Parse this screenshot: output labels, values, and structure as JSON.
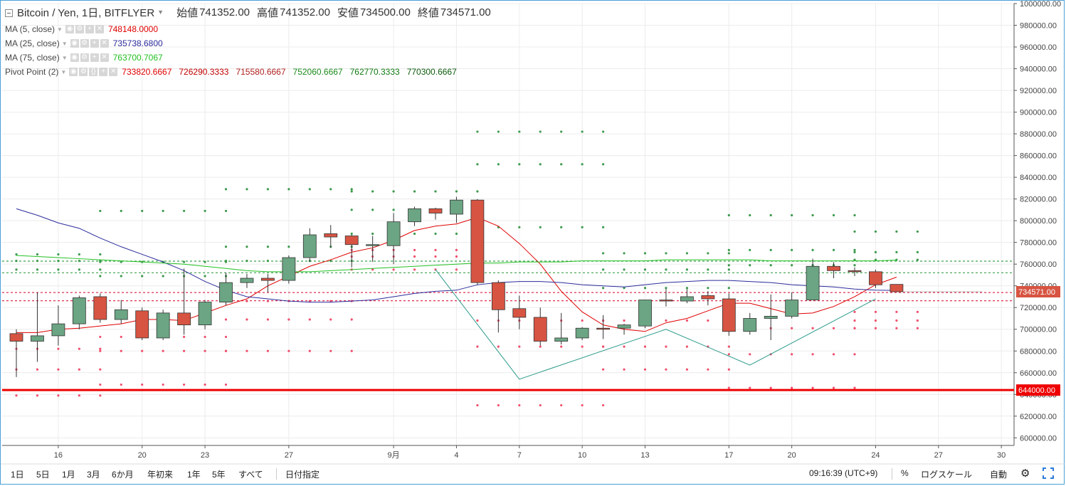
{
  "header": {
    "symbol": "Bitcoin / Yen, 1日, BITFLYER",
    "open_label": "始値",
    "open": "741352.00",
    "high_label": "高値",
    "high": "741352.00",
    "low_label": "安値",
    "low": "734500.00",
    "close_label": "終値",
    "close": "734571.00"
  },
  "indicators": [
    {
      "name": "MA (5, close)",
      "values": [
        "748148.0000"
      ],
      "colors": [
        "#e00000"
      ]
    },
    {
      "name": "MA (25, close)",
      "values": [
        "735738.6800"
      ],
      "colors": [
        "#2c2c9c"
      ]
    },
    {
      "name": "MA (75, close)",
      "values": [
        "763700.7067"
      ],
      "colors": [
        "#22c022"
      ]
    },
    {
      "name": "Pivot Point (2)",
      "values": [
        "733820.6667",
        "726290.3333",
        "715580.6667",
        "752060.6667",
        "762770.3333",
        "770300.6667"
      ],
      "colors": [
        "#e00000",
        "#c00000",
        "#b02020",
        "#1a8a1a",
        "#107a10",
        "#0a5a0a"
      ]
    }
  ],
  "toolbar": {
    "ranges": [
      "1日",
      "5日",
      "1月",
      "3月",
      "6か月",
      "年初来",
      "1年",
      "5年",
      "すべて"
    ],
    "goto_date": "日付指定",
    "clock": "09:16:39 (UTC+9)",
    "percent": "%",
    "log_scale": "ログスケール",
    "auto": "自動"
  },
  "colors": {
    "up": "#6ba583",
    "down": "#d75442",
    "ma5": "#e00000",
    "ma25": "#2c2c9c",
    "ma75": "#22c022",
    "zigzag": "#2a9a8a",
    "frame": "#4a9fd8"
  },
  "chart_data": {
    "type": "candlestick",
    "x_tick_labels": [
      "16",
      "20",
      "23",
      "27",
      "9月",
      "4",
      "7",
      "10",
      "13",
      "17",
      "20",
      "24",
      "27",
      "30"
    ],
    "y_tick_labels": [
      "600000.00",
      "620000.00",
      "640000.00",
      "660000.00",
      "680000.00",
      "700000.00",
      "720000.00",
      "740000.00",
      "760000.00",
      "780000.00",
      "800000.00",
      "820000.00",
      "840000.00",
      "860000.00",
      "880000.00",
      "900000.00",
      "920000.00",
      "940000.00",
      "960000.00",
      "980000.00",
      "1000000.00"
    ],
    "ylim": [
      593000,
      1000000
    ],
    "last_price_label": "734571.00",
    "horizontal_line_label": "644000.00",
    "horizontal_line_value": 644000,
    "pivot_levels": {
      "R": [
        752060,
        762770
      ],
      "P": 733820,
      "S": [
        726290
      ]
    },
    "candles": [
      {
        "date": "8/14",
        "o": 696000,
        "h": 700000,
        "l": 656000,
        "c": 689000
      },
      {
        "date": "8/15",
        "o": 689000,
        "h": 734000,
        "l": 670000,
        "c": 694000
      },
      {
        "date": "8/16",
        "o": 694000,
        "h": 722000,
        "l": 685000,
        "c": 705000
      },
      {
        "date": "8/17",
        "o": 705000,
        "h": 731000,
        "l": 700000,
        "c": 729000
      },
      {
        "date": "8/18",
        "o": 730000,
        "h": 733000,
        "l": 706000,
        "c": 709000
      },
      {
        "date": "8/19",
        "o": 709000,
        "h": 727000,
        "l": 705000,
        "c": 718000
      },
      {
        "date": "8/20",
        "o": 717000,
        "h": 720000,
        "l": 690000,
        "c": 692000
      },
      {
        "date": "8/21",
        "o": 692000,
        "h": 718000,
        "l": 690000,
        "c": 715000
      },
      {
        "date": "8/22",
        "o": 715000,
        "h": 756000,
        "l": 695000,
        "c": 704000
      },
      {
        "date": "8/23",
        "o": 704000,
        "h": 727000,
        "l": 700000,
        "c": 725000
      },
      {
        "date": "8/24",
        "o": 725000,
        "h": 752000,
        "l": 722000,
        "c": 743000
      },
      {
        "date": "8/25",
        "o": 743000,
        "h": 751000,
        "l": 738000,
        "c": 747000
      },
      {
        "date": "8/26",
        "o": 747000,
        "h": 751000,
        "l": 734000,
        "c": 745000
      },
      {
        "date": "8/27",
        "o": 745000,
        "h": 768000,
        "l": 742000,
        "c": 766000
      },
      {
        "date": "8/28",
        "o": 766000,
        "h": 793000,
        "l": 762000,
        "c": 787000
      },
      {
        "date": "8/29",
        "o": 788000,
        "h": 796000,
        "l": 775000,
        "c": 785000
      },
      {
        "date": "8/30",
        "o": 786000,
        "h": 787000,
        "l": 757000,
        "c": 778000
      },
      {
        "date": "8/31",
        "o": 777000,
        "h": 786000,
        "l": 762000,
        "c": 778000
      },
      {
        "date": "9/1",
        "o": 777000,
        "h": 807000,
        "l": 760000,
        "c": 799000
      },
      {
        "date": "9/2",
        "o": 799000,
        "h": 813000,
        "l": 795000,
        "c": 811000
      },
      {
        "date": "9/3",
        "o": 811000,
        "h": 812000,
        "l": 801000,
        "c": 807000
      },
      {
        "date": "9/4",
        "o": 806000,
        "h": 822000,
        "l": 798000,
        "c": 819000
      },
      {
        "date": "9/5",
        "o": 819000,
        "h": 820000,
        "l": 741000,
        "c": 743000
      },
      {
        "date": "9/6",
        "o": 743000,
        "h": 745000,
        "l": 697000,
        "c": 718000
      },
      {
        "date": "9/7",
        "o": 719000,
        "h": 731000,
        "l": 700000,
        "c": 711000
      },
      {
        "date": "9/8",
        "o": 711000,
        "h": 720000,
        "l": 685000,
        "c": 689000
      },
      {
        "date": "9/9",
        "o": 689000,
        "h": 715000,
        "l": 686000,
        "c": 692000
      },
      {
        "date": "9/10",
        "o": 692000,
        "h": 702000,
        "l": 690000,
        "c": 701000
      },
      {
        "date": "9/11",
        "o": 701000,
        "h": 713000,
        "l": 691000,
        "c": 700000
      },
      {
        "date": "9/12",
        "o": 701000,
        "h": 705000,
        "l": 695000,
        "c": 704000
      },
      {
        "date": "9/13",
        "o": 703000,
        "h": 727000,
        "l": 701000,
        "c": 727000
      },
      {
        "date": "9/14",
        "o": 727000,
        "h": 737000,
        "l": 721000,
        "c": 726000
      },
      {
        "date": "9/15",
        "o": 726000,
        "h": 737000,
        "l": 724000,
        "c": 730000
      },
      {
        "date": "9/16",
        "o": 731000,
        "h": 735000,
        "l": 722000,
        "c": 728000
      },
      {
        "date": "9/17",
        "o": 728000,
        "h": 733000,
        "l": 694000,
        "c": 698000
      },
      {
        "date": "9/18",
        "o": 698000,
        "h": 715000,
        "l": 695000,
        "c": 710000
      },
      {
        "date": "9/19",
        "o": 710000,
        "h": 732000,
        "l": 690000,
        "c": 712000
      },
      {
        "date": "9/20",
        "o": 712000,
        "h": 734000,
        "l": 710000,
        "c": 727000
      },
      {
        "date": "9/21",
        "o": 727000,
        "h": 765000,
        "l": 727000,
        "c": 758000
      },
      {
        "date": "9/22",
        "o": 758000,
        "h": 762000,
        "l": 747000,
        "c": 754000
      },
      {
        "date": "9/23",
        "o": 754000,
        "h": 757000,
        "l": 749000,
        "c": 753000
      },
      {
        "date": "9/24",
        "o": 753000,
        "h": 755000,
        "l": 738000,
        "c": 741000
      },
      {
        "date": "9/25",
        "o": 741352,
        "h": 741352,
        "l": 734500,
        "c": 734571
      }
    ],
    "ma_series": [
      {
        "name": "MA (5, close)",
        "color": "#e00000",
        "start_index": 0,
        "values": [
          697000,
          697000,
          700000,
          701000,
          703000,
          705000,
          709000,
          709000,
          708000,
          715000,
          722000,
          728000,
          740000,
          749000,
          758000,
          764000,
          771000,
          775000,
          782000,
          791000,
          795000,
          797000,
          803000,
          795000,
          779000,
          760000,
          735000,
          716000,
          704000,
          700000,
          698000,
          706000,
          710000,
          717000,
          724000,
          724000,
          719000,
          714000,
          715000,
          721000,
          730000,
          741000,
          748000
        ]
      },
      {
        "name": "MA (25, close)",
        "color": "#2c2c9c",
        "start_index": 0,
        "values": [
          811000,
          805000,
          798000,
          793000,
          784000,
          776000,
          769000,
          762000,
          754000,
          744000,
          736000,
          730000,
          728000,
          726000,
          725000,
          725000,
          726000,
          727000,
          730000,
          733000,
          735000,
          736000,
          741000,
          743000,
          744000,
          744000,
          743000,
          741000,
          740000,
          739000,
          741000,
          743000,
          744000,
          745000,
          745000,
          744000,
          743000,
          741000,
          740000,
          739000,
          737000,
          736000,
          735738
        ]
      },
      {
        "name": "MA (75, close)",
        "color": "#22c022",
        "start_index": 0,
        "values": [
          768000,
          767000,
          766000,
          765000,
          764000,
          763000,
          762000,
          761000,
          760000,
          758000,
          756000,
          754000,
          753000,
          753000,
          753000,
          754000,
          755000,
          756000,
          757000,
          758000,
          759000,
          760000,
          761000,
          761000,
          762000,
          762000,
          762000,
          763000,
          763000,
          763000,
          763000,
          764000,
          764000,
          764000,
          764000,
          764000,
          763000,
          763000,
          763000,
          763000,
          763000,
          763000,
          763700
        ]
      }
    ],
    "zigzag": {
      "points": [
        [
          20,
          755000
        ],
        [
          24,
          654000
        ],
        [
          31,
          700000
        ],
        [
          35,
          667000
        ],
        [
          41,
          728000
        ]
      ]
    },
    "pivot_dots": [
      {
        "from": 0,
        "to": 4,
        "R": [
          755000,
          763000,
          769000
        ],
        "S": [
          682000,
          663000,
          639000
        ]
      },
      {
        "from": 4,
        "to": 10,
        "R": [
          749000,
          762000,
          809000
        ],
        "S": [
          693000,
          680000,
          649000
        ]
      },
      {
        "from": 10,
        "to": 16,
        "R": [
          763000,
          776000,
          829000
        ],
        "S": [
          726000,
          709000,
          680000
        ]
      },
      {
        "from": 16,
        "to": 22,
        "R": [
          788000,
          810000,
          827000
        ],
        "S": [
          767000,
          755000,
          773000
        ]
      },
      {
        "from": 22,
        "to": 28,
        "R": [
          852000,
          882000,
          794000
        ],
        "S": [
          708000,
          684000,
          630000
        ]
      },
      {
        "from": 28,
        "to": 34,
        "R": [
          738000,
          755000,
          770000
        ],
        "S": [
          708000,
          684000,
          663000
        ]
      },
      {
        "from": 34,
        "to": 40,
        "R": [
          759000,
          773000,
          805000
        ],
        "S": [
          701000,
          677000,
          646000
        ]
      },
      {
        "from": 40,
        "to": 43,
        "R": [
          764000,
          771000,
          790000
        ],
        "S": [
          716000,
          708000,
          701000
        ]
      }
    ]
  }
}
